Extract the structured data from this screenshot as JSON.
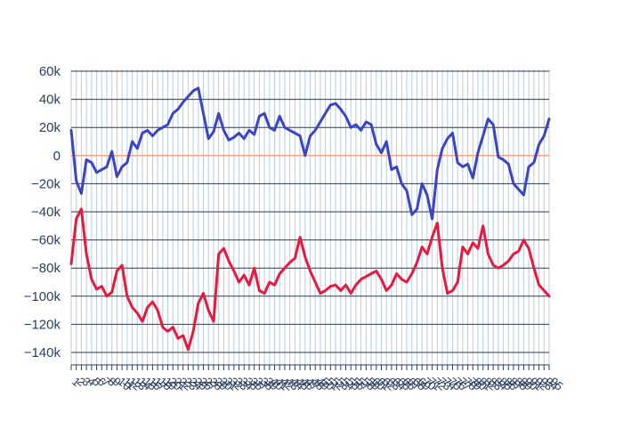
{
  "chart_data": {
    "type": "line",
    "title": "",
    "xlabel": "",
    "ylabel": "",
    "ylim": [
      -150000,
      60000
    ],
    "y_ticks": [
      60000,
      40000,
      20000,
      0,
      -20000,
      -40000,
      -60000,
      -80000,
      -100000,
      -120000,
      -140000
    ],
    "y_tick_labels": [
      "60k",
      "40k",
      "20k",
      "0",
      "−20k",
      "−40k",
      "−60k",
      "−80k",
      "−100k",
      "−120k",
      "−140k"
    ],
    "x_tick_labels": [
      "1",
      "2",
      "3",
      "4",
      "5",
      "6",
      "7",
      "8",
      "9",
      "10",
      "11",
      "12",
      "13",
      "14",
      "15",
      "16",
      "17",
      "18",
      "19",
      "20",
      "21",
      "22",
      "23",
      "24",
      "25",
      "26",
      "27",
      "28",
      "29",
      "30",
      "31",
      "32",
      "33",
      "34",
      "35",
      "36",
      "37",
      "38",
      "39",
      "40",
      "41",
      "42",
      "43",
      "44",
      "45",
      "46",
      "47",
      "48",
      "49",
      "50",
      "51",
      "52",
      "53",
      "54",
      "55",
      "56",
      "57",
      "58",
      "59",
      "60",
      "61",
      "62",
      "63",
      "64",
      "65",
      "66",
      "67",
      "68",
      "69",
      "70",
      "71",
      "72",
      "73",
      "74",
      "75",
      "76",
      "77",
      "78",
      "79",
      "80",
      "81",
      "82",
      "83",
      "84",
      "85",
      "86",
      "87",
      "88",
      "89",
      "90",
      "91",
      "92",
      "93",
      "94",
      "95"
    ],
    "zero_line_color": "#f4a582",
    "grid": true,
    "legend": "none",
    "series": [
      {
        "color": "#3b44c4",
        "x": [
          1,
          2,
          3,
          4,
          5,
          6,
          7,
          8,
          9,
          10,
          11,
          12,
          13,
          14,
          15,
          16,
          17,
          18,
          19,
          20,
          21,
          22,
          23,
          24,
          25,
          26,
          27,
          28,
          29,
          30,
          31,
          32,
          33,
          34,
          35,
          36,
          37,
          38,
          39,
          40,
          41,
          42,
          43,
          44,
          45,
          46,
          47,
          48,
          49,
          50,
          51,
          52,
          53,
          54,
          55,
          56,
          57,
          58,
          59,
          60,
          61,
          62,
          63,
          64,
          65,
          66,
          67,
          68,
          69,
          70,
          71,
          72,
          73,
          74,
          75,
          76,
          77,
          78,
          79,
          80,
          81,
          82,
          83,
          84,
          85,
          86,
          87,
          88,
          89,
          90,
          91,
          92,
          93,
          94,
          95
        ],
        "values": [
          18000,
          -18000,
          -27000,
          -3000,
          -5000,
          -12000,
          -10000,
          -8000,
          3000,
          -15000,
          -8000,
          -5000,
          10000,
          5000,
          16000,
          18000,
          14000,
          18000,
          20000,
          22000,
          30000,
          33000,
          38000,
          42000,
          46000,
          48000,
          30000,
          12000,
          17000,
          30000,
          18000,
          11000,
          13000,
          16000,
          12000,
          18000,
          15000,
          28000,
          30000,
          20000,
          18000,
          28000,
          20000,
          18000,
          16000,
          14000,
          0,
          14000,
          18000,
          24000,
          30000,
          36000,
          37000,
          33000,
          28000,
          20000,
          22000,
          18000,
          24000,
          22000,
          8000,
          2000,
          10000,
          -10000,
          -8000,
          -20000,
          -25000,
          -42000,
          -38000,
          -20000,
          -28000,
          -45000,
          -10000,
          5000,
          12000,
          16000,
          -5000,
          -8000,
          -6000,
          -16000,
          2000,
          14000,
          26000,
          22000,
          -1000,
          -3000,
          -6000,
          -20000,
          -24000,
          -28000,
          -8000,
          -5000,
          8000,
          14000,
          26000
        ],
        "smooth_index": true
      },
      {
        "color": "#e8193c",
        "x": [
          1,
          2,
          3,
          4,
          5,
          6,
          7,
          8,
          9,
          10,
          11,
          12,
          13,
          14,
          15,
          16,
          17,
          18,
          19,
          20,
          21,
          22,
          23,
          24,
          25,
          26,
          27,
          28,
          29,
          30,
          31,
          32,
          33,
          34,
          35,
          36,
          37,
          38,
          39,
          40,
          41,
          42,
          43,
          44,
          45,
          46,
          47,
          48,
          49,
          50,
          51,
          52,
          53,
          54,
          55,
          56,
          57,
          58,
          59,
          60,
          61,
          62,
          63,
          64,
          65,
          66,
          67,
          68,
          69,
          70,
          71,
          72,
          73,
          74,
          75,
          76,
          77,
          78,
          79,
          80,
          81,
          82,
          83,
          84,
          85,
          86,
          87,
          88,
          89,
          90,
          91,
          92,
          93,
          94,
          95
        ],
        "values": [
          -77000,
          -45000,
          -38000,
          -70000,
          -88000,
          -95000,
          -93000,
          -100000,
          -97000,
          -82000,
          -78000,
          -100000,
          -108000,
          -112000,
          -118000,
          -108000,
          -104000,
          -110000,
          -122000,
          -125000,
          -122000,
          -130000,
          -128000,
          -138000,
          -125000,
          -105000,
          -98000,
          -110000,
          -118000,
          -70000,
          -66000,
          -75000,
          -82000,
          -90000,
          -85000,
          -92000,
          -80000,
          -96000,
          -98000,
          -90000,
          -92000,
          -84000,
          -80000,
          -76000,
          -73000,
          -58000,
          -72000,
          -82000,
          -90000,
          -98000,
          -96000,
          -93000,
          -92000,
          -96000,
          -92000,
          -98000,
          -92000,
          -88000,
          -86000,
          -84000,
          -82000,
          -88000,
          -96000,
          -92000,
          -84000,
          -88000,
          -90000,
          -84000,
          -76000,
          -65000,
          -70000,
          -58000,
          -48000,
          -80000,
          -98000,
          -96000,
          -90000,
          -65000,
          -70000,
          -62000,
          -66000,
          -50000,
          -70000,
          -78000,
          -80000,
          -78000,
          -75000,
          -70000,
          -68000,
          -60000,
          -66000,
          -80000,
          -92000,
          -96000,
          -100000
        ],
        "smooth_index": true
      }
    ]
  }
}
